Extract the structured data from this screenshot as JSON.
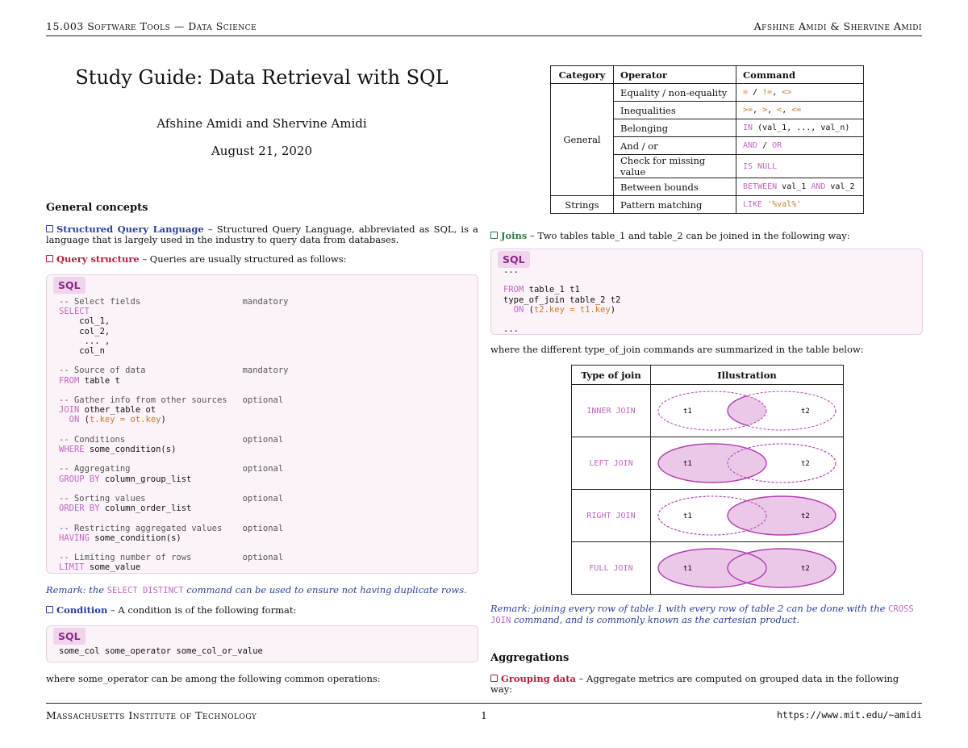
{
  "header": {
    "left": "15.003 Software Tools — Data Science",
    "right": "Afshine Amidi & Shervine Amidi"
  },
  "footer": {
    "left": "Massachusetts Institute of Technology",
    "page": "1",
    "right": "https://www.mit.edu/~amidi"
  },
  "title": {
    "main": "Study Guide: Data Retrieval with SQL",
    "authors": "Afshine Amidi and Shervine Amidi",
    "date": "August 21, 2020"
  },
  "general_concepts": {
    "heading": "General concepts",
    "sql_term": "Structured Query Language",
    "sql_text": " – Structured Query Language, abbreviated as SQL, is a language that is largely used in the industry to query data from databases.",
    "qs_term": "Query structure",
    "qs_text": " – Queries are usually structured as follows:",
    "code_tag": "SQL",
    "remark_pre": "Remark: the ",
    "remark_code": "SELECT DISTINCT",
    "remark_post": " command can be used to ensure not having duplicate rows.",
    "cond_term": "Condition",
    "cond_text": " – A condition is of the following format:",
    "cond_tag": "SQL",
    "cond_code": "some_col some_operator some_col_or_value",
    "ops_intro": "where some_operator can be among the following common operations:"
  },
  "query_structure": [
    {
      "comment": "-- Select fields",
      "tag": "mandatory",
      "lines": [
        [
          "SELECT"
        ],
        [
          "    col_1,"
        ],
        [
          "    col_2,"
        ],
        [
          "     ... ,"
        ],
        [
          "    col_n"
        ]
      ]
    },
    {
      "comment": "-- Source of data",
      "tag": "mandatory"
    },
    {
      "comment": "-- Gather info from other sources",
      "tag": "optional"
    },
    {
      "comment": "-- Conditions",
      "tag": "optional"
    },
    {
      "comment": "-- Aggregating",
      "tag": "optional"
    },
    {
      "comment": "-- Sorting values",
      "tag": "optional"
    },
    {
      "comment": "-- Restricting aggregated values",
      "tag": "optional"
    },
    {
      "comment": "-- Limiting number of rows",
      "tag": "optional"
    }
  ],
  "operator_table": {
    "headers": [
      "Category",
      "Operator",
      "Command"
    ],
    "general_label": "General",
    "strings_label": "Strings",
    "rows": [
      {
        "operator": "Equality / non-equality",
        "command": "= / !=, <>"
      },
      {
        "operator": "Inequalities",
        "command": ">=, >, <, <="
      },
      {
        "operator": "Belonging",
        "command": "IN (val_1, ..., val_n)"
      },
      {
        "operator": "And / or",
        "command": "AND / OR"
      },
      {
        "operator": "Check for missing value",
        "command": "IS NULL"
      },
      {
        "operator": "Between bounds",
        "command": "BETWEEN val_1 AND val_2"
      },
      {
        "operator": "Pattern matching",
        "command": "LIKE '%val%'"
      }
    ]
  },
  "joins": {
    "term": "Joins",
    "text": " – Two tables table_1 and table_2 can be joined in the following way:",
    "code_tag": "SQL",
    "summary": "where the different type_of_join commands are summarized in the table below:",
    "table_headers": [
      "Type of join",
      "Illustration"
    ],
    "types": [
      "INNER JOIN",
      "LEFT JOIN",
      "RIGHT JOIN",
      "FULL JOIN"
    ],
    "t1": "t1",
    "t2": "t2",
    "remark_pre": "Remark: joining every row of table 1 with every row of table 2 can be done with the ",
    "remark_code": "CROSS JOIN",
    "remark_post": " command, and is commonly known as the cartesian product."
  },
  "aggregations": {
    "heading": "Aggregations",
    "term": "Grouping data",
    "text": " – Aggregate metrics are computed on grouped data in the following way:"
  },
  "colors": {
    "keyword": "#c267c2",
    "term_red": "#b2203a",
    "term_blue": "#2a3f9a",
    "term_green": "#2a7a3a",
    "venn_fill": "#ecc8e8",
    "venn_stroke": "#b23cb2",
    "code_bg": "#fcf3fa"
  }
}
